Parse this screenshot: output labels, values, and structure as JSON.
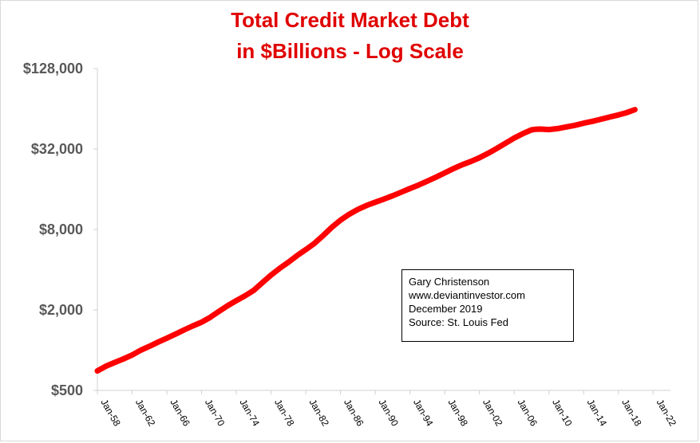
{
  "chart_data": {
    "type": "line",
    "title_line1": "Total Credit Market Debt",
    "title_line2": "in $Billions - Log Scale",
    "y_scale": "log",
    "ylim": [
      500,
      128000
    ],
    "y_ticks": [
      500,
      2000,
      8000,
      32000,
      128000
    ],
    "y_tick_labels": [
      "$500",
      "$2,000",
      "$8,000",
      "$32,000",
      "$128,000"
    ],
    "x_range": [
      "1958-01",
      "2024-01"
    ],
    "x_tick_labels": [
      "Jan-58",
      "Jan-62",
      "Jan-66",
      "Jan-70",
      "Jan-74",
      "Jan-78",
      "Jan-82",
      "Jan-86",
      "Jan-90",
      "Jan-94",
      "Jan-98",
      "Jan-02",
      "Jan-06",
      "Jan-10",
      "Jan-14",
      "Jan-18",
      "Jan-22"
    ],
    "x_tick_years": [
      1958,
      1962,
      1966,
      1970,
      1974,
      1978,
      1982,
      1986,
      1990,
      1994,
      1998,
      2002,
      2006,
      2010,
      2014,
      2018,
      2022
    ],
    "grid": false,
    "line_color": "#ff0000",
    "title_color": "#e00000",
    "series": [
      {
        "x": [
          1958.0,
          1959.0,
          1960.0,
          1961.0,
          1962.0,
          1963.0,
          1964.0,
          1965.0,
          1966.0,
          1967.0,
          1968.0,
          1969.0,
          1970.0,
          1971.0,
          1972.0,
          1973.0,
          1974.0,
          1975.0,
          1976.0,
          1977.0,
          1978.0,
          1979.0,
          1980.0,
          1981.0,
          1982.0,
          1983.0,
          1984.0,
          1985.0,
          1986.0,
          1987.0,
          1988.0,
          1989.0,
          1990.0,
          1991.0,
          1992.0,
          1993.0,
          1994.0,
          1995.0,
          1996.0,
          1997.0,
          1998.0,
          1999.0,
          2000.0,
          2001.0,
          2002.0,
          2003.0,
          2004.0,
          2005.0,
          2006.0,
          2007.0,
          2008.0,
          2008.5,
          2009.0,
          2010.0,
          2011.0,
          2012.0,
          2013.0,
          2014.0,
          2015.0,
          2016.0,
          2017.0,
          2018.0,
          2019.0,
          2019.9
        ],
        "values": [
          700,
          760,
          810,
          860,
          920,
          1000,
          1070,
          1150,
          1230,
          1320,
          1420,
          1520,
          1620,
          1760,
          1950,
          2150,
          2350,
          2550,
          2800,
          3200,
          3650,
          4100,
          4550,
          5100,
          5650,
          6300,
          7200,
          8300,
          9400,
          10400,
          11300,
          12100,
          12800,
          13500,
          14300,
          15200,
          16200,
          17200,
          18400,
          19700,
          21200,
          22800,
          24400,
          25800,
          27500,
          29700,
          32300,
          35300,
          38600,
          41700,
          44500,
          45000,
          45100,
          44700,
          45500,
          46800,
          48100,
          49900,
          51500,
          53500,
          55500,
          57500,
          60000,
          63000
        ]
      }
    ],
    "annotation": {
      "lines": [
        "Gary Christenson",
        "www.deviantinvestor.com",
        "December 2019",
        "Source: St. Louis Fed"
      ]
    }
  }
}
